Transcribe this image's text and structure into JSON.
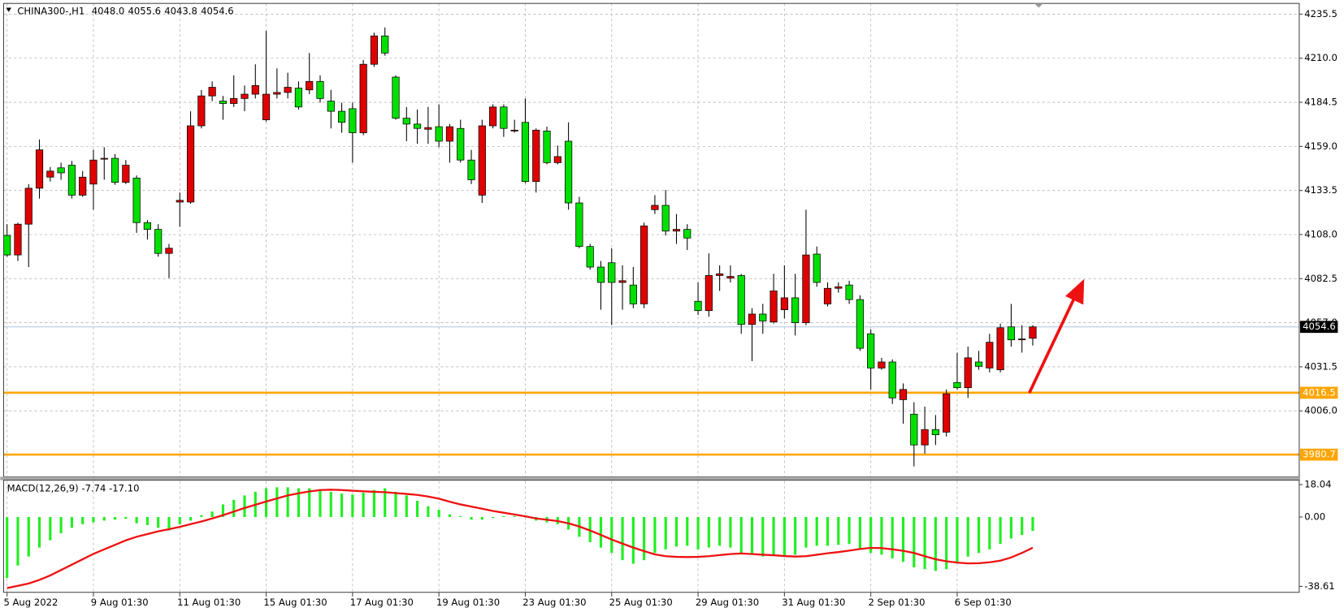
{
  "chart_data": [
    {
      "type": "candlestick",
      "title": "CHINA300-,H1",
      "header_values": [
        "4048.0",
        "4055.6",
        "4043.8",
        "4054.6"
      ],
      "categories": [
        "5 Aug 2022",
        null,
        null,
        null,
        null,
        null,
        null,
        null,
        "9 Aug 01:30",
        null,
        null,
        null,
        null,
        null,
        null,
        null,
        "11 Aug 01:30",
        null,
        null,
        null,
        null,
        null,
        null,
        null,
        "15 Aug 01:30",
        null,
        null,
        null,
        null,
        null,
        null,
        null,
        "17 Aug 01:30",
        null,
        null,
        null,
        null,
        null,
        null,
        null,
        "19 Aug 01:30",
        null,
        null,
        null,
        null,
        null,
        null,
        null,
        "23 Aug 01:30",
        null,
        null,
        null,
        null,
        null,
        null,
        null,
        "25 Aug 01:30",
        null,
        null,
        null,
        null,
        null,
        null,
        null,
        "29 Aug 01:30",
        null,
        null,
        null,
        null,
        null,
        null,
        null,
        "31 Aug 01:30",
        null,
        null,
        null,
        null,
        null,
        null,
        null,
        "2 Sep 01:30",
        null,
        null,
        null,
        null,
        null,
        null,
        null,
        "6 Sep 01:30",
        null,
        null,
        null,
        null,
        null,
        null,
        null
      ],
      "open": [
        4107.5,
        4096.2,
        4114.0,
        4134.8,
        4141.2,
        4146.6,
        4148.1,
        4130.8,
        4137.2,
        4151.6,
        4152.1,
        4138.2,
        4140.7,
        4114.9,
        4111.0,
        4097.1,
        4126.8,
        4126.8,
        4170.9,
        4188.2,
        4185.2,
        4183.8,
        4186.7,
        4189.2,
        4174.4,
        4189.2,
        4190.2,
        4192.7,
        4191.7,
        4196.6,
        4185.2,
        4179.3,
        4180.8,
        4166.9,
        4206.5,
        4222.9,
        4199.1,
        4175.3,
        4171.9,
        4168.9,
        4170.4,
        4162.0,
        4169.4,
        4151.1,
        4130.8,
        4170.9,
        4181.8,
        4167.9,
        4172.9,
        4138.7,
        4167.9,
        4149.6,
        4162.0,
        4126.3,
        4101.1,
        4089.2,
        4091.7,
        4080.3,
        4078.8,
        4067.9,
        4122.4,
        4124.9,
        4110.0,
        4111.0,
        4069.4,
        4064.0,
        4084.3,
        4082.8,
        4084.3,
        4056.0,
        4062.0,
        4057.5,
        4064.5,
        4071.4,
        4057.0,
        4096.7,
        4067.9,
        4076.9,
        4078.8,
        4070.4,
        4050.6,
        4030.8,
        4034.3,
        4012.5,
        4004.1,
        3986.3,
        3995.2,
        3993.7,
        4022.4,
        4019.4,
        4034.3,
        4030.8,
        4029.8,
        4054.6,
        4047.1,
        4048.0
      ],
      "high": [
        4114.0,
        4114.9,
        4137.2,
        4163.0,
        4147.1,
        4149.6,
        4150.6,
        4144.7,
        4157.0,
        4158.5,
        4154.6,
        4151.1,
        4142.2,
        4116.4,
        4114.0,
        4102.6,
        4132.3,
        4179.3,
        4191.7,
        4196.6,
        4188.2,
        4200.1,
        4194.2,
        4206.5,
        4225.8,
        4204.1,
        4201.6,
        4196.6,
        4213.0,
        4200.1,
        4191.7,
        4184.3,
        4184.3,
        4209.0,
        4224.8,
        4227.8,
        4200.1,
        4181.8,
        4180.3,
        4181.8,
        4183.3,
        4171.9,
        4174.4,
        4157.0,
        4174.4,
        4183.3,
        4183.3,
        4174.4,
        4186.7,
        4169.4,
        4170.4,
        4159.5,
        4172.9,
        4129.8,
        4102.6,
        4092.7,
        4100.1,
        4090.2,
        4089.2,
        4114.9,
        4130.8,
        4133.8,
        4119.9,
        4114.0,
        4080.3,
        4097.1,
        4090.2,
        4090.2,
        4085.3,
        4065.4,
        4067.9,
        4085.3,
        4090.2,
        4085.3,
        4122.4,
        4101.1,
        4080.3,
        4080.3,
        4081.3,
        4072.9,
        4053.1,
        4036.7,
        4035.8,
        4021.9,
        4011.0,
        4008.5,
        4003.6,
        4018.4,
        4039.7,
        4043.2,
        4040.7,
        4050.6,
        4056.5,
        4067.9,
        4055.6,
        4055.6
      ],
      "low": [
        4095.2,
        4092.7,
        4089.2,
        4128.8,
        4138.7,
        4139.7,
        4128.8,
        4129.8,
        4122.4,
        4139.7,
        4136.8,
        4137.2,
        4109.0,
        4105.1,
        4095.2,
        4082.8,
        4112.5,
        4125.8,
        4169.4,
        4185.2,
        4174.4,
        4181.8,
        4179.3,
        4186.7,
        4173.4,
        4186.7,
        4186.7,
        4180.3,
        4189.2,
        4184.3,
        4169.4,
        4166.9,
        4149.6,
        4165.5,
        4205.0,
        4211.5,
        4174.4,
        4162.0,
        4160.5,
        4160.5,
        4158.5,
        4149.6,
        4149.6,
        4137.2,
        4126.3,
        4169.4,
        4164.5,
        4166.9,
        4137.7,
        4132.3,
        4148.6,
        4148.6,
        4122.4,
        4100.1,
        4087.7,
        4064.5,
        4055.6,
        4064.5,
        4065.4,
        4065.4,
        4119.9,
        4107.5,
        4102.6,
        4099.1,
        4061.5,
        4060.5,
        4075.4,
        4080.3,
        4050.6,
        4034.8,
        4050.6,
        4056.5,
        4059.5,
        4049.6,
        4055.6,
        4077.8,
        4066.4,
        4074.4,
        4067.9,
        4040.7,
        4018.4,
        4029.8,
        4010.0,
        3998.6,
        3973.9,
        3981.3,
        3986.3,
        3991.2,
        4018.4,
        4013.5,
        4029.8,
        4028.3,
        4028.3,
        4043.2,
        4039.7,
        4043.8
      ],
      "close": [
        4096.2,
        4114.0,
        4134.8,
        4157.0,
        4144.7,
        4143.7,
        4130.8,
        4141.2,
        4151.1,
        4152.1,
        4138.2,
        4148.1,
        4114.9,
        4111.0,
        4097.1,
        4100.1,
        4127.8,
        4170.9,
        4188.2,
        4193.2,
        4183.8,
        4186.7,
        4189.2,
        4194.2,
        4189.2,
        4190.2,
        4193.2,
        4181.8,
        4196.6,
        4186.7,
        4179.3,
        4172.9,
        4166.9,
        4206.5,
        4222.9,
        4213.0,
        4175.3,
        4171.9,
        4169.4,
        4169.9,
        4162.0,
        4170.4,
        4151.1,
        4139.7,
        4170.9,
        4181.8,
        4169.4,
        4168.4,
        4138.7,
        4168.4,
        4149.6,
        4153.1,
        4126.3,
        4101.1,
        4089.2,
        4080.3,
        4080.3,
        4081.3,
        4067.9,
        4113.0,
        4124.9,
        4110.0,
        4111.0,
        4106.0,
        4064.0,
        4084.3,
        4085.3,
        4083.8,
        4056.0,
        4062.0,
        4058.0,
        4075.4,
        4071.4,
        4057.0,
        4096.2,
        4080.3,
        4076.9,
        4077.8,
        4070.4,
        4042.2,
        4030.8,
        4034.3,
        4013.5,
        4018.4,
        3986.3,
        3995.2,
        3992.2,
        4015.9,
        4019.4,
        4036.7,
        4031.8,
        4045.7,
        4054.1,
        4047.1,
        4047.6,
        4054.6
      ],
      "up_color": "#e00000",
      "down_color": "#00e000",
      "last_line_color": "#b0c4de",
      "ylim": [
        3967.9,
        4241.7
      ],
      "yticks": [
        4235.5,
        {
          "value": 4210,
          "label": "4210.0"
        },
        4184.5,
        {
          "value": 4159,
          "label": "4159.0"
        },
        4133.5,
        {
          "value": 4108,
          "label": "4108.0"
        },
        4082.5,
        {
          "value": 4057,
          "label": "4057.0"
        },
        4031.5,
        {
          "value": 4006,
          "label": "4006.0"
        }
      ],
      "grid": true,
      "hlines": [
        {
          "value": 4016.5,
          "color": "#ffa500"
        },
        {
          "value": 3980.7,
          "color": "#ffa500"
        }
      ]
    },
    {
      "type": "macd",
      "title": "MACD(12,26,9) -7.74 -17.10",
      "histogram": {
        "color": "#22ee22",
        "values": [
          -34,
          -27,
          -22,
          -17,
          -13,
          -9,
          -6,
          -4,
          -3,
          -2,
          -1.5,
          -1,
          -3.5,
          -4.5,
          -6,
          -7.5,
          -4,
          -2,
          1,
          3,
          7,
          9.5,
          12,
          14,
          16,
          16.5,
          16.5,
          16,
          16,
          15.5,
          14,
          13,
          12.5,
          13.5,
          15,
          16,
          14,
          12,
          9,
          6,
          4,
          1.5,
          0.5,
          -1.5,
          -1.5,
          -0.5,
          0.5,
          0.5,
          0,
          -2,
          -3,
          -4,
          -7,
          -11,
          -14,
          -17,
          -20,
          -24,
          -26,
          -24,
          -20,
          -18,
          -16.5,
          -16,
          -18,
          -17,
          -16,
          -17,
          -20,
          -21,
          -22,
          -21,
          -22,
          -21,
          -17,
          -16,
          -16,
          -15.5,
          -15,
          -18,
          -20,
          -21,
          -23,
          -25,
          -28,
          -29,
          -30,
          -29,
          -25,
          -22,
          -20,
          -18,
          -15,
          -12,
          -10,
          -7.74
        ]
      },
      "signal": {
        "color": "#ee1111",
        "values": [
          -39.5,
          -38.3,
          -37,
          -35,
          -32.5,
          -29.5,
          -26.5,
          -23.5,
          -20.5,
          -18,
          -15.5,
          -13,
          -11,
          -9.5,
          -8,
          -6.8,
          -5.5,
          -4,
          -2.5,
          -0.8,
          1,
          3,
          5,
          6.8,
          8.6,
          10.3,
          12,
          13.2,
          14.2,
          15,
          15.2,
          15,
          14.6,
          14.3,
          14,
          13.8,
          13.3,
          12.8,
          12.3,
          11.4,
          10.2,
          8.5,
          7,
          5.8,
          4.6,
          3.4,
          2.4,
          1.4,
          0.4,
          -0.8,
          -1.5,
          -2.3,
          -3.5,
          -5.3,
          -7.5,
          -10,
          -12.5,
          -14.8,
          -17,
          -19,
          -20.8,
          -21.8,
          -22.2,
          -22.3,
          -22.2,
          -21.8,
          -21.2,
          -20.6,
          -20.3,
          -20.6,
          -21,
          -21.3,
          -21.7,
          -22,
          -21.8,
          -21,
          -20.2,
          -19.5,
          -18.7,
          -17.8,
          -17.2,
          -17.3,
          -18,
          -18.8,
          -20,
          -21.8,
          -23.5,
          -24.6,
          -25.4,
          -25.8,
          -25.7,
          -25.2,
          -24.3,
          -22.5,
          -20,
          -17.1
        ]
      },
      "ylim": [
        -41.9,
        20
      ],
      "yticks": [
        18.04,
        {
          "value": 0,
          "label": "0.00"
        },
        -38.61
      ]
    }
  ]
}
